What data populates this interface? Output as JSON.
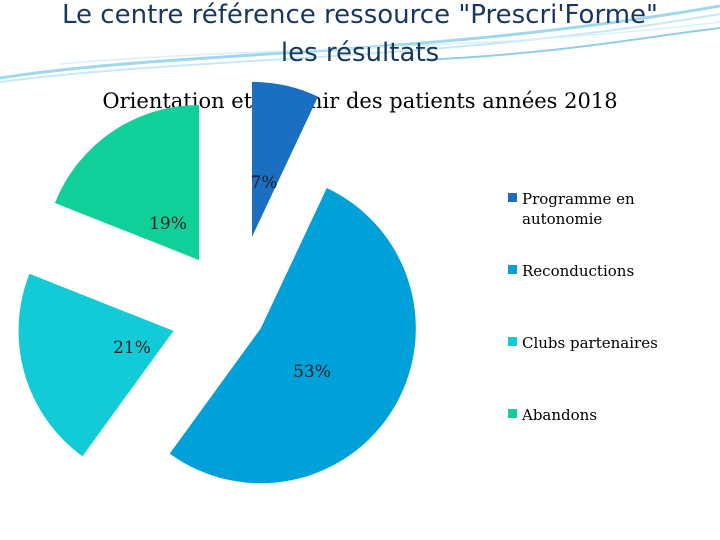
{
  "header": {
    "title_line1": "Le centre référence ressource \"Prescri'Forme\"",
    "title_line2": "les résultats"
  },
  "chart_data": {
    "type": "pie",
    "title": "Orientation et devenir des patients années 2018",
    "categories": [
      "Programme en autonomie",
      "Reconductions",
      "Clubs partenaires",
      "Abandons"
    ],
    "values": [
      7,
      53,
      21,
      19
    ],
    "labels": [
      "7%",
      "53%",
      "21%",
      "19%"
    ],
    "colors": [
      "#1a6fc2",
      "#00a1d9",
      "#12cbd6",
      "#10cf98"
    ],
    "exploded": true,
    "legend_position": "right"
  }
}
